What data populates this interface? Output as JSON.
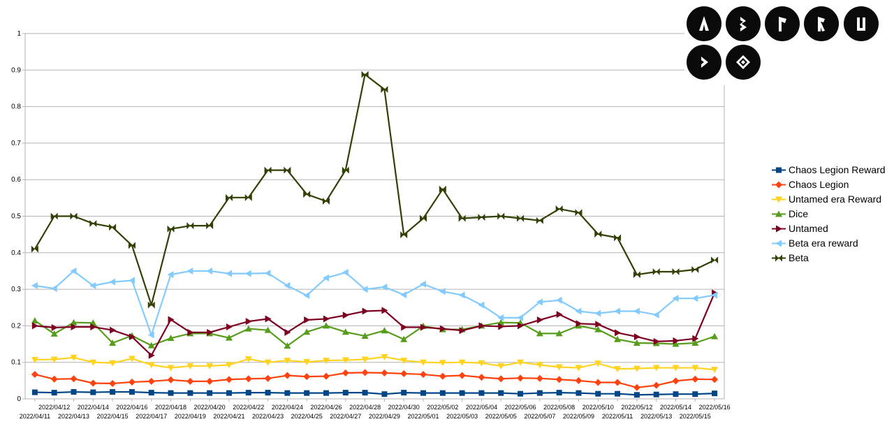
{
  "chart_data": {
    "type": "line",
    "title": "",
    "xlabel": "",
    "ylabel": "",
    "ylim": [
      0,
      1
    ],
    "yticks": [
      "0",
      "0.1",
      "0.2",
      "0.3",
      "0.4",
      "0.5",
      "0.6",
      "0.7",
      "0.8",
      "0.9",
      "1"
    ],
    "grid": true,
    "legend_position": "right",
    "categories": [
      "2022/04/11",
      "2022/04/12",
      "2022/04/13",
      "2022/04/14",
      "2022/04/15",
      "2022/04/16",
      "2022/04/17",
      "2022/04/18",
      "2022/04/19",
      "2022/04/20",
      "2022/04/21",
      "2022/04/22",
      "2022/04/23",
      "2022/04/24",
      "2022/04/25",
      "2022/04/26",
      "2022/04/27",
      "2022/04/28",
      "2022/04/29",
      "2022/04/30",
      "2022/05/01",
      "2022/05/02",
      "2022/05/03",
      "2022/05/04",
      "2022/05/05",
      "2022/05/06",
      "2022/05/07",
      "2022/05/08",
      "2022/05/09",
      "2022/05/10",
      "2022/05/11",
      "2022/05/12",
      "2022/05/13",
      "2022/05/14",
      "2022/05/15",
      "2022/05/16"
    ],
    "series": [
      {
        "name": "Chaos Legion Reward",
        "color": "#004586",
        "marker": "square",
        "values": [
          0.018,
          0.017,
          0.019,
          0.018,
          0.019,
          0.019,
          0.017,
          0.016,
          0.016,
          0.016,
          0.016,
          0.017,
          0.017,
          0.016,
          0.016,
          0.016,
          0.017,
          0.017,
          0.013,
          0.017,
          0.016,
          0.016,
          0.016,
          0.016,
          0.016,
          0.014,
          0.016,
          0.017,
          0.016,
          0.014,
          0.014,
          0.011,
          0.012,
          0.013,
          0.013,
          0.015
        ]
      },
      {
        "name": "Chaos Legion",
        "color": "#ff420e",
        "marker": "diamond",
        "values": [
          0.067,
          0.054,
          0.055,
          0.043,
          0.042,
          0.046,
          0.048,
          0.052,
          0.048,
          0.048,
          0.053,
          0.055,
          0.056,
          0.064,
          0.061,
          0.062,
          0.071,
          0.072,
          0.071,
          0.069,
          0.067,
          0.062,
          0.064,
          0.059,
          0.055,
          0.057,
          0.056,
          0.053,
          0.05,
          0.045,
          0.045,
          0.031,
          0.037,
          0.049,
          0.054,
          0.053
        ]
      },
      {
        "name": "Untamed era Reward",
        "color": "#ffd320",
        "marker": "triangle-down",
        "values": [
          0.107,
          0.108,
          0.113,
          0.1,
          0.098,
          0.11,
          0.093,
          0.085,
          0.09,
          0.09,
          0.093,
          0.109,
          0.1,
          0.105,
          0.101,
          0.105,
          0.106,
          0.108,
          0.115,
          0.105,
          0.1,
          0.099,
          0.1,
          0.098,
          0.09,
          0.1,
          0.093,
          0.087,
          0.085,
          0.097,
          0.082,
          0.083,
          0.085,
          0.085,
          0.085,
          0.08
        ]
      },
      {
        "name": "Dice",
        "color": "#579d1c",
        "marker": "triangle-up",
        "values": [
          0.214,
          0.178,
          0.209,
          0.208,
          0.153,
          0.173,
          0.146,
          0.166,
          0.179,
          0.179,
          0.167,
          0.192,
          0.188,
          0.145,
          0.183,
          0.2,
          0.183,
          0.172,
          0.187,
          0.163,
          0.199,
          0.19,
          0.19,
          0.2,
          0.209,
          0.208,
          0.179,
          0.179,
          0.2,
          0.19,
          0.163,
          0.153,
          0.152,
          0.15,
          0.153,
          0.171
        ]
      },
      {
        "name": "Untamed",
        "color": "#7e0021",
        "marker": "triangle-right",
        "values": [
          0.2,
          0.195,
          0.197,
          0.197,
          0.188,
          0.17,
          0.119,
          0.217,
          0.182,
          0.182,
          0.197,
          0.212,
          0.219,
          0.182,
          0.216,
          0.219,
          0.229,
          0.24,
          0.242,
          0.196,
          0.196,
          0.192,
          0.187,
          0.2,
          0.198,
          0.2,
          0.216,
          0.231,
          0.206,
          0.204,
          0.181,
          0.17,
          0.157,
          0.159,
          0.165,
          0.29
        ]
      },
      {
        "name": "Beta era reward",
        "color": "#83caff",
        "marker": "triangle-left",
        "values": [
          0.31,
          0.302,
          0.35,
          0.31,
          0.32,
          0.324,
          0.175,
          0.34,
          0.35,
          0.35,
          0.343,
          0.343,
          0.344,
          0.31,
          0.283,
          0.331,
          0.346,
          0.3,
          0.306,
          0.285,
          0.314,
          0.294,
          0.284,
          0.257,
          0.222,
          0.222,
          0.265,
          0.27,
          0.24,
          0.234,
          0.24,
          0.24,
          0.23,
          0.275,
          0.275,
          0.284
        ]
      },
      {
        "name": "Beta",
        "color": "#314004",
        "marker": "bowtie",
        "values": [
          0.41,
          0.5,
          0.5,
          0.48,
          0.47,
          0.42,
          0.257,
          0.465,
          0.474,
          0.474,
          0.551,
          0.551,
          0.626,
          0.626,
          0.56,
          0.541,
          0.626,
          0.888,
          0.847,
          0.449,
          0.494,
          0.574,
          0.494,
          0.497,
          0.5,
          0.494,
          0.488,
          0.52,
          0.51,
          0.451,
          0.441,
          0.34,
          0.348,
          0.348,
          0.354,
          0.38
        ]
      }
    ]
  },
  "icons": [
    {
      "name": "rune-a-icon"
    },
    {
      "name": "rune-b-icon"
    },
    {
      "name": "rune-f-icon"
    },
    {
      "name": "rune-k-icon"
    },
    {
      "name": "rune-u-icon"
    },
    {
      "name": "rune-arrow-icon"
    },
    {
      "name": "rune-diamond-icon"
    }
  ]
}
